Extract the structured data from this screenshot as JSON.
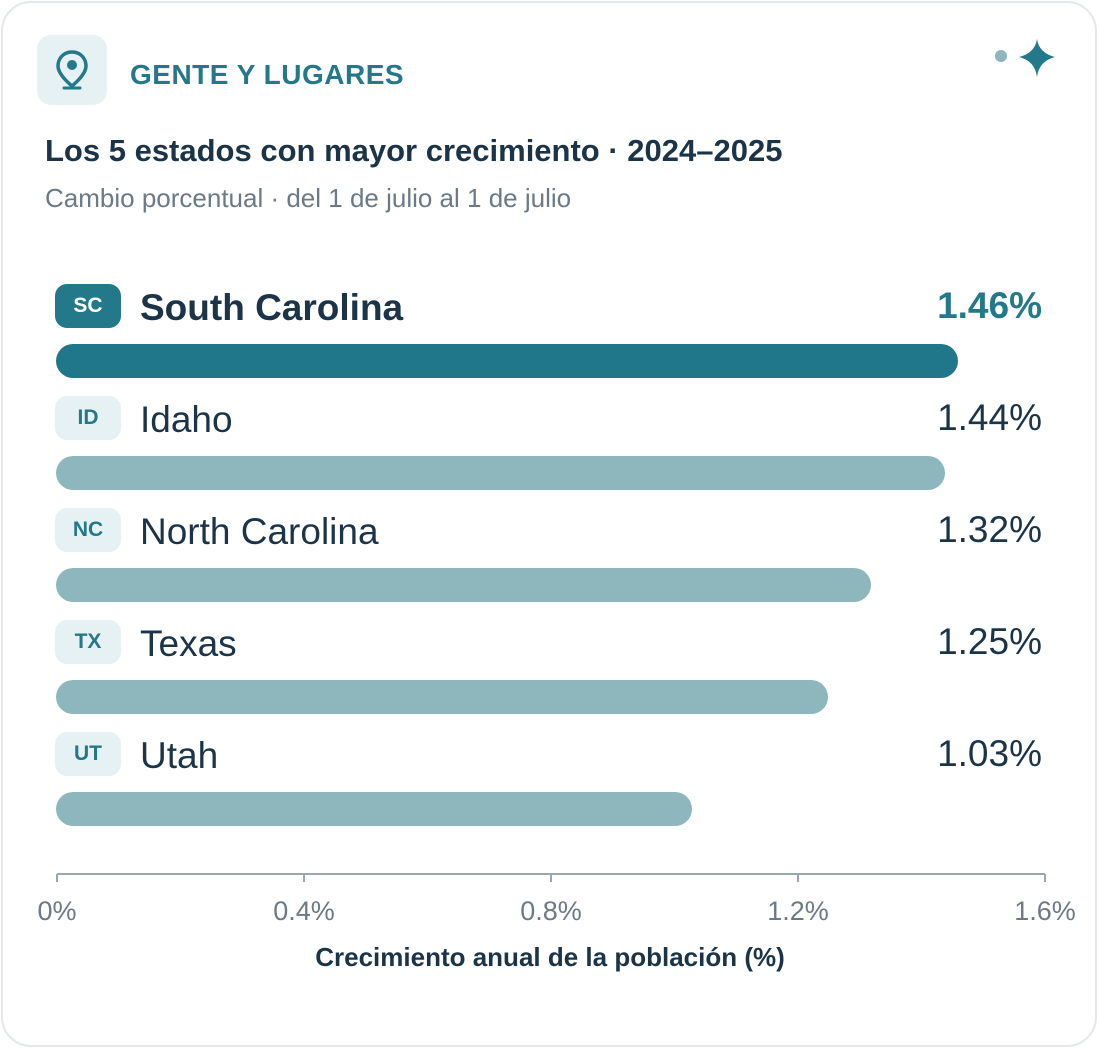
{
  "header": {
    "section_label": "GENTE Y LUGARES",
    "icons": [
      "location-pin-icon",
      "sparkle-icon"
    ],
    "accent_color": "#23788a"
  },
  "chart_data": {
    "type": "bar",
    "orientation": "horizontal",
    "title": "Los 5 estados con mayor crecimiento · 2024–2025",
    "subtitle": "Cambio porcentual · del 1 de julio al 1 de julio",
    "xlabel": "Crecimiento anual de la población (%)",
    "xlim": [
      0,
      1.6
    ],
    "ticks": [
      {
        "value": 0,
        "label": "0%"
      },
      {
        "value": 0.4,
        "label": "0.4%"
      },
      {
        "value": 0.8,
        "label": "0.8%"
      },
      {
        "value": 1.2,
        "label": "1.2%"
      },
      {
        "value": 1.6,
        "label": "1.6%"
      }
    ],
    "rows": [
      {
        "abbr": "SC",
        "name": "South Carolina",
        "value": 1.46,
        "label": "1.46%",
        "highlight": true
      },
      {
        "abbr": "ID",
        "name": "Idaho",
        "value": 1.44,
        "label": "1.44%",
        "highlight": false
      },
      {
        "abbr": "NC",
        "name": "North Carolina",
        "value": 1.32,
        "label": "1.32%",
        "highlight": false
      },
      {
        "abbr": "TX",
        "name": "Texas",
        "value": 1.25,
        "label": "1.25%",
        "highlight": false
      },
      {
        "abbr": "UT",
        "name": "Utah",
        "value": 1.03,
        "label": "1.03%",
        "highlight": false
      }
    ],
    "colors": {
      "highlight": "#20778a",
      "bar": "#8db6bd"
    },
    "grid": false
  }
}
